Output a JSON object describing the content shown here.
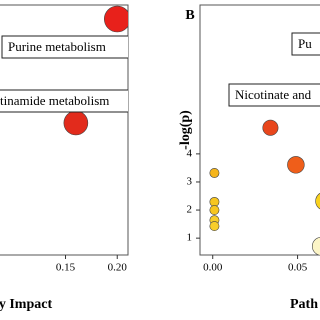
{
  "chart_data": [
    {
      "type": "scatter",
      "x": [
        0.2,
        0.16
      ],
      "values": [
        8.8,
        5.1
      ],
      "colors": [
        "#e8211b",
        "#e22b1c"
      ],
      "xlim": [
        0.077,
        0.2104
      ],
      "xticks": [
        {
          "value": 0.15,
          "label": "0.15"
        },
        {
          "value": 0.2,
          "label": "0.20"
        }
      ],
      "ylim": [
        0.4,
        9.3
      ],
      "x_label": "ay Impact",
      "annotations": [
        "Purine metabolism",
        "tinamide metabolism"
      ]
    },
    {
      "type": "scatter",
      "title": "B",
      "x": [
        0.001,
        0.001,
        0.001,
        0.001,
        0.001,
        0.034,
        0.049,
        0.066,
        0.064
      ],
      "values": [
        3.32,
        2.29,
        2.0,
        1.64,
        1.43,
        4.93,
        3.61,
        2.32,
        0.71
      ],
      "colors": [
        "#f5b51b",
        "#f7c61f",
        "#f7c61f",
        "#f8ce2a",
        "#f8ce2a",
        "#e8461c",
        "#ef5e1a",
        "#f9d21e",
        "#fcf5c7"
      ],
      "xlim": [
        -0.0075,
        0.075
      ],
      "xticks": [
        {
          "value": 0,
          "label": "0.00"
        },
        {
          "value": 0.05,
          "label": "0.05"
        }
      ],
      "ylim": [
        0.4,
        9.3
      ],
      "yticks": [
        1,
        2,
        3,
        4
      ],
      "x_label": "Path",
      "y_label": "-log(p)",
      "annotations": [
        "Pu",
        "Nicotinate and"
      ]
    }
  ]
}
